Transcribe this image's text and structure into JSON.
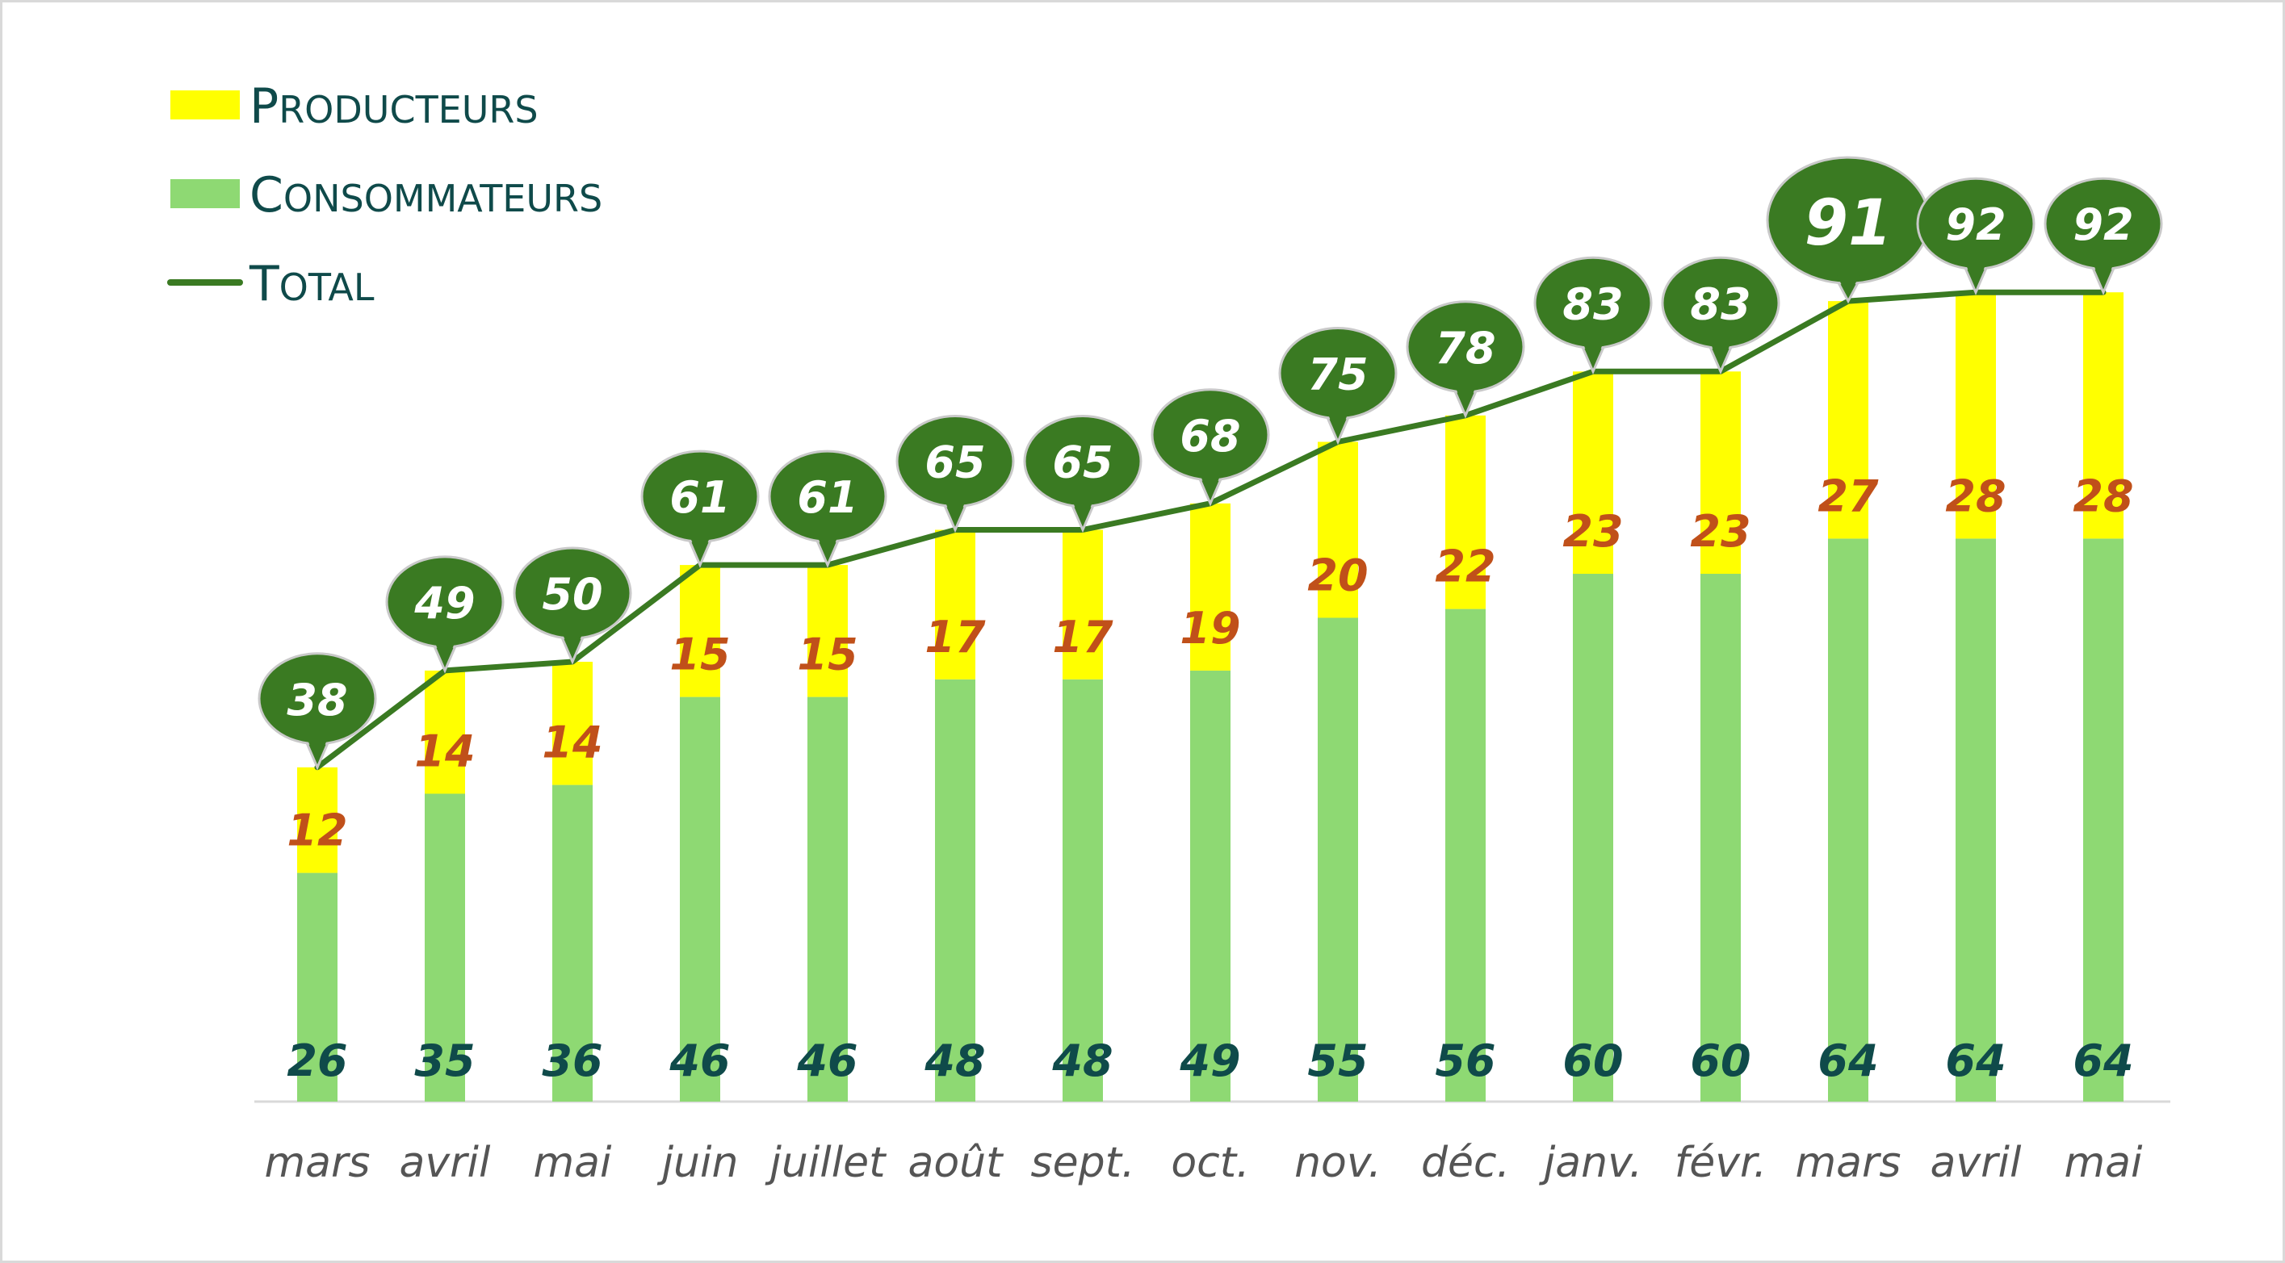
{
  "chart_data": {
    "type": "bar",
    "stacked": true,
    "categories": [
      "mars",
      "avril",
      "mai",
      "juin",
      "juillet",
      "août",
      "sept.",
      "oct.",
      "nov.",
      "déc.",
      "janv.",
      "févr.",
      "mars",
      "avril",
      "mai"
    ],
    "series": [
      {
        "name": "Consommateurs",
        "kind": "bar",
        "color": "#8ed973",
        "values": [
          26,
          35,
          36,
          46,
          46,
          48,
          48,
          49,
          55,
          56,
          60,
          60,
          64,
          64,
          64
        ]
      },
      {
        "name": "Producteurs",
        "kind": "bar",
        "color": "#ffff00",
        "values": [
          12,
          14,
          14,
          15,
          15,
          17,
          17,
          19,
          20,
          22,
          23,
          23,
          27,
          28,
          28
        ]
      },
      {
        "name": "Total",
        "kind": "line",
        "color": "#3a7a22",
        "values": [
          38,
          49,
          50,
          61,
          61,
          65,
          65,
          68,
          75,
          78,
          83,
          83,
          91,
          92,
          92
        ]
      }
    ],
    "legend": {
      "placement": "top-left",
      "entries": [
        {
          "first": "P",
          "rest": "RODUCTEURS",
          "color": "#ffff00",
          "marker": "bar"
        },
        {
          "first": "C",
          "rest": "ONSOMMATEURS",
          "color": "#8ed973",
          "marker": "bar"
        },
        {
          "first": "T",
          "rest": "OTAL",
          "color": "#3a7a22",
          "marker": "line"
        }
      ]
    },
    "colors": {
      "consommateurs": "#8ed973",
      "producteurs": "#ffff00",
      "total_line": "#3a7a22",
      "bubble": "#3a7a22",
      "cons_label": "#0f4a4a",
      "prod_label": "#c0501a",
      "total_label": "#ffffff",
      "axis": "#d9d9d9"
    },
    "ylim": [
      0,
      100
    ],
    "grid": false,
    "title": "",
    "xlabel": "",
    "ylabel": ""
  }
}
